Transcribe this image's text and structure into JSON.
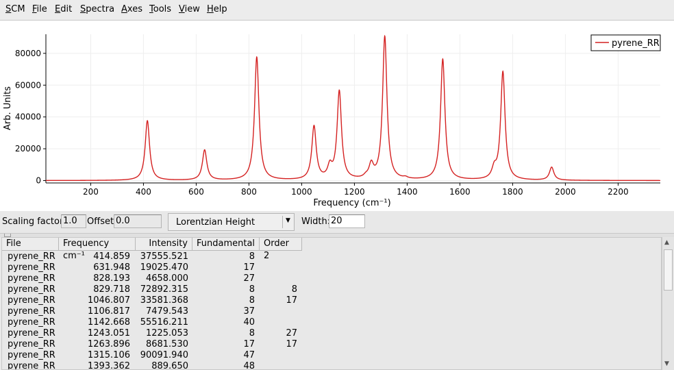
{
  "menu": [
    {
      "pre": "",
      "u": "S",
      "post": "CM"
    },
    {
      "pre": "",
      "u": "F",
      "post": "ile"
    },
    {
      "pre": "",
      "u": "E",
      "post": "dit"
    },
    {
      "pre": "",
      "u": "S",
      "post": "pectra"
    },
    {
      "pre": "",
      "u": "A",
      "post": "xes"
    },
    {
      "pre": "",
      "u": "T",
      "post": "ools"
    },
    {
      "pre": "",
      "u": "V",
      "post": "iew"
    },
    {
      "pre": "",
      "u": "H",
      "post": "elp"
    }
  ],
  "controls": {
    "scaling_label": "Scaling factor:",
    "scaling_value": "1.0",
    "offset_label": "Offset:",
    "offset_value": "0.0",
    "broadening_selected": "Lorentzian Height",
    "width_label": "Width:",
    "width_value": "20"
  },
  "table": {
    "columns": [
      "File",
      "Frequency cm⁻¹",
      "Intensity",
      "Fundamental",
      "Order 2"
    ],
    "rows": [
      [
        "pyrene_RR",
        "414.859",
        "37555.521",
        "8",
        ""
      ],
      [
        "pyrene_RR",
        "631.948",
        "19025.470",
        "17",
        ""
      ],
      [
        "pyrene_RR",
        "828.193",
        "4658.000",
        "27",
        ""
      ],
      [
        "pyrene_RR",
        "829.718",
        "72892.315",
        "8",
        "8"
      ],
      [
        "pyrene_RR",
        "1046.807",
        "33581.368",
        "8",
        "17"
      ],
      [
        "pyrene_RR",
        "1106.817",
        "7479.543",
        "37",
        ""
      ],
      [
        "pyrene_RR",
        "1142.668",
        "55516.211",
        "40",
        ""
      ],
      [
        "pyrene_RR",
        "1243.051",
        "1225.053",
        "8",
        "27"
      ],
      [
        "pyrene_RR",
        "1263.896",
        "8681.530",
        "17",
        "17"
      ],
      [
        "pyrene_RR",
        "1315.106",
        "90091.940",
        "47",
        ""
      ],
      [
        "pyrene_RR",
        "1393.362",
        "889.650",
        "48",
        ""
      ]
    ]
  },
  "chart_data": {
    "type": "line",
    "xlabel": "Frequency (cm⁻¹)",
    "ylabel": "Arb. Units",
    "xlim": [
      30,
      2360
    ],
    "ylim": [
      -1500,
      92000
    ],
    "xticks": [
      200,
      400,
      600,
      800,
      1000,
      1200,
      1400,
      1600,
      1800,
      2000,
      2200
    ],
    "yticks": [
      0,
      20000,
      40000,
      60000,
      80000
    ],
    "legend_position": "top-right",
    "grid": true,
    "series": [
      {
        "name": "pyrene_RR",
        "color": "#d42020",
        "peaks": [
          {
            "x": 414.859,
            "height": 37555.521
          },
          {
            "x": 631.948,
            "height": 19025.47
          },
          {
            "x": 828.193,
            "height": 4658.0
          },
          {
            "x": 829.718,
            "height": 72892.315
          },
          {
            "x": 1046.807,
            "height": 33581.368
          },
          {
            "x": 1106.817,
            "height": 7479.543
          },
          {
            "x": 1142.668,
            "height": 55516.211
          },
          {
            "x": 1243.051,
            "height": 1225.053
          },
          {
            "x": 1263.896,
            "height": 8681.53
          },
          {
            "x": 1315.106,
            "height": 90091.94
          },
          {
            "x": 1393.362,
            "height": 889.65
          },
          {
            "x": 1535,
            "height": 76000
          },
          {
            "x": 1730,
            "height": 6000
          },
          {
            "x": 1763,
            "height": 68000
          },
          {
            "x": 1948,
            "height": 8200
          }
        ],
        "lorentzian_width": 20
      }
    ]
  }
}
